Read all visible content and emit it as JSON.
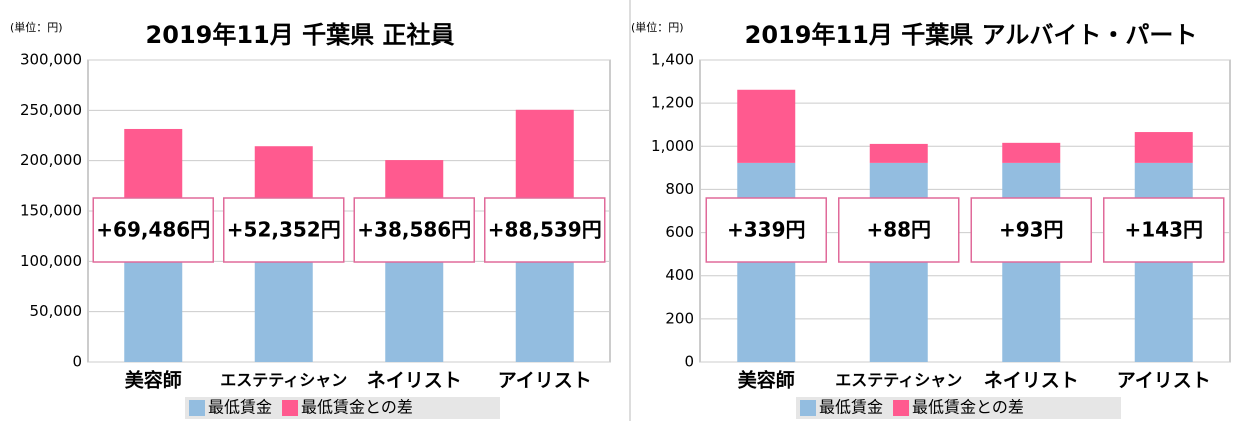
{
  "chart_data": [
    {
      "type": "stacked_bar",
      "title": "2019年11月 千葉県 正社員",
      "unit": "(単位：円)",
      "categories": [
        "美容師",
        "エステティシャン",
        "ネイリスト",
        "アイリスト"
      ],
      "series": [
        {
          "name": "最低賃金",
          "color": "#93bde0",
          "values": [
            162000,
            162000,
            162000,
            162000
          ]
        },
        {
          "name": "最低賃金との差",
          "color": "#ff5a8f",
          "values": [
            69486,
            52352,
            38586,
            88539
          ],
          "value_labels": [
            "+69,486円",
            "+52,352円",
            "+38,586円",
            "+88,539円"
          ]
        }
      ],
      "ylim": [
        0,
        300000
      ],
      "yticks": [
        0,
        {
          "value": 50000,
          "label": "50,000"
        },
        {
          "value": 100000,
          "label": "100,000"
        },
        {
          "value": 150000,
          "label": "150,000"
        },
        {
          "value": 200000,
          "label": "200,000"
        },
        {
          "value": 250000,
          "label": "250,000"
        },
        {
          "value": 300000,
          "label": "300,000"
        }
      ],
      "grid": true
    },
    {
      "type": "stacked_bar",
      "title": "2019年11月 千葉県 アルバイト・パート",
      "unit": "(単位：円)",
      "categories": [
        "美容師",
        "エステティシャン",
        "ネイリスト",
        "アイリスト"
      ],
      "series": [
        {
          "name": "最低賃金",
          "color": "#93bde0",
          "values": [
            923,
            923,
            923,
            923
          ]
        },
        {
          "name": "最低賃金との差",
          "color": "#ff5a8f",
          "values": [
            339,
            88,
            93,
            143
          ],
          "value_labels": [
            "+339円",
            "+88円",
            "+93円",
            "+143円"
          ]
        }
      ],
      "ylim": [
        0,
        1400
      ],
      "yticks": [
        0,
        200,
        400,
        600,
        800,
        {
          "value": 1000,
          "label": "1,000"
        },
        {
          "value": 1200,
          "label": "1,200"
        },
        {
          "value": 1400,
          "label": "1,400"
        }
      ],
      "grid": true
    }
  ]
}
